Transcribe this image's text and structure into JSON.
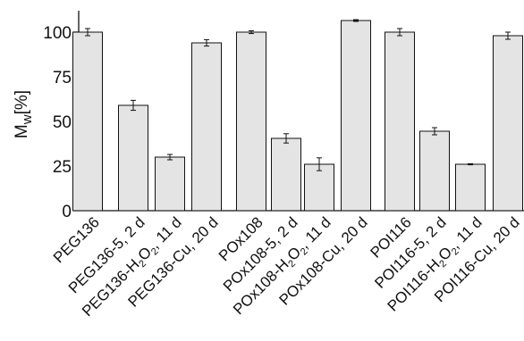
{
  "chart_data": {
    "type": "bar",
    "title": "",
    "xlabel": "",
    "ylabel": "Mw[%]",
    "ylabel_main": "M",
    "ylabel_sub": "w",
    "ylabel_unit": "[%]",
    "ylim": [
      0,
      112
    ],
    "yticks": [
      0,
      25,
      50,
      75,
      100
    ],
    "categories": [
      "PEG136",
      "PEG136-5, 2 d",
      "PEG136-H2O2, 11 d",
      "PEG136-Cu, 20 d",
      "POx108",
      "POx108-5, 2 d",
      "POx108-H2O2, 11 d",
      "POx108-Cu, 20 d",
      "POI116",
      "POI116-5, 2 d",
      "POI116-H2O2, 11 d",
      "POI116-Cu, 20 d"
    ],
    "label_parts": [
      [
        {
          "t": "PEG136"
        }
      ],
      [
        {
          "t": "PEG136-5, 2 d"
        }
      ],
      [
        {
          "t": "PEG136-H"
        },
        {
          "t": "2",
          "sub": true
        },
        {
          "t": "O"
        },
        {
          "t": "2",
          "sub": true
        },
        {
          "t": ", 11 d"
        }
      ],
      [
        {
          "t": "PEG136-Cu, 20 d"
        }
      ],
      [
        {
          "t": "POx108"
        }
      ],
      [
        {
          "t": "POx108-5, 2 d"
        }
      ],
      [
        {
          "t": "POx108-H"
        },
        {
          "t": "2",
          "sub": true
        },
        {
          "t": "O"
        },
        {
          "t": "2",
          "sub": true
        },
        {
          "t": ", 11 d"
        }
      ],
      [
        {
          "t": "POx108-Cu, 20 d"
        }
      ],
      [
        {
          "t": "POI116"
        }
      ],
      [
        {
          "t": "POI116-5, 2 d"
        }
      ],
      [
        {
          "t": "POI116-H"
        },
        {
          "t": "2",
          "sub": true
        },
        {
          "t": "O"
        },
        {
          "t": "2",
          "sub": true
        },
        {
          "t": ", 11 d"
        }
      ],
      [
        {
          "t": "POI116-Cu, 20 d"
        }
      ]
    ],
    "values": [
      100,
      59,
      30,
      94,
      100,
      40.5,
      26,
      106.5,
      100,
      44.5,
      26,
      98
    ],
    "errors": [
      2,
      2.8,
      1.5,
      1.8,
      0.8,
      2.6,
      3.6,
      0.5,
      2,
      2,
      0.3,
      2
    ],
    "grid": false,
    "legend": "none"
  }
}
